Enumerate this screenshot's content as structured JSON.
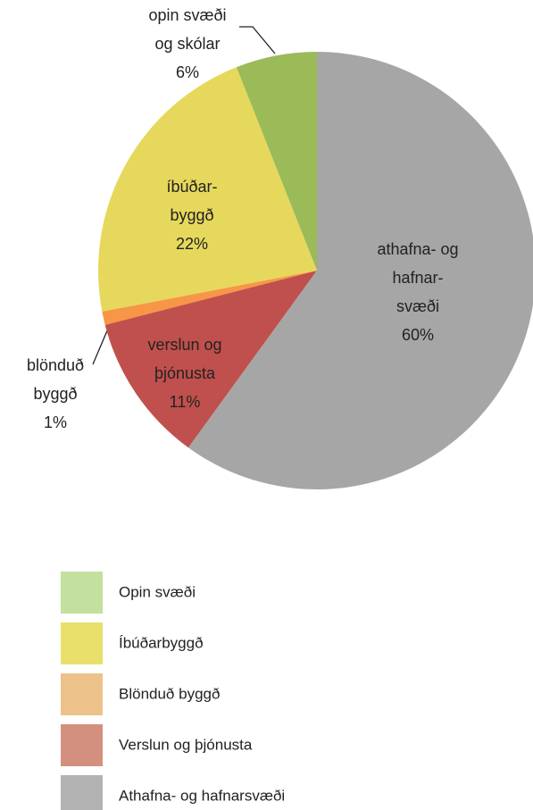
{
  "chart_data": {
    "type": "pie",
    "categories": [
      "Opin svæði",
      "Íbúðarbyggð",
      "Blönduð byggð",
      "Verslun og þjónusta",
      "Athafna- og hafnarsvæði"
    ],
    "values": [
      6,
      22,
      1,
      11,
      60
    ],
    "value_labels": [
      "6%",
      "22%",
      "1%",
      "11%",
      "60%"
    ],
    "slice_labels": [
      [
        "opin svæði",
        "og skólar"
      ],
      [
        "íbúðar-",
        "byggð"
      ],
      [
        "blönduð",
        "byggð"
      ],
      [
        "verslun og",
        "þjónusta"
      ],
      [
        "athafna- og",
        "hafnar-",
        "svæði"
      ]
    ],
    "colors": [
      "#9bbb59",
      "#e6d85c",
      "#f79646",
      "#c0504d",
      "#a6a6a6"
    ],
    "legend_colors": [
      "#c3e09e",
      "#e8e06a",
      "#edc28a",
      "#d4907f",
      "#b3b3b3"
    ]
  }
}
